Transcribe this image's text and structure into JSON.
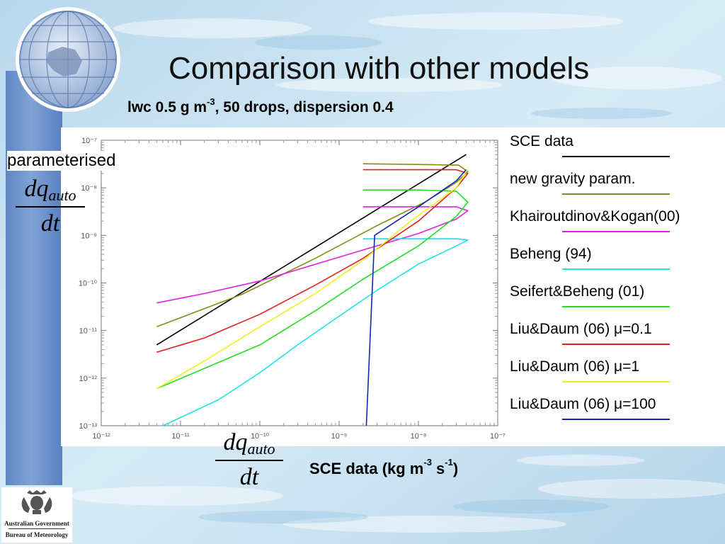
{
  "title": "Comparison with other models",
  "subtitle": {
    "main": "lwc 0.5 g m",
    "sup1": "-3",
    "rest": ", 50 drops, dispersion 0.4"
  },
  "y_annotation": "parameterised",
  "y_fraction": {
    "num": "dq",
    "sub": "auto",
    "den": "dt"
  },
  "x_fraction": {
    "num": "dq",
    "sub": "auto",
    "den": "dt"
  },
  "x_label": {
    "main": "SCE data (kg m",
    "sup1": "-3",
    "mid": " s",
    "sup2": "-1",
    "end": ")"
  },
  "logo": {
    "line1": "Australian Government",
    "line2": "Bureau of Meteorology"
  },
  "colors": {
    "sce": "#000000",
    "gravity": "#8a8a1a",
    "kk": "#e020e0",
    "beheng": "#20e0e8",
    "sb": "#20e020",
    "liu01": "#e02020",
    "liu1": "#f0f020",
    "liu100": "#1028b0"
  },
  "legend": [
    {
      "label": "SCE data",
      "color": "#000000"
    },
    {
      "label": "new gravity param.",
      "color": "#8a8a1a"
    },
    {
      "label": "Khairoutdinov&Kogan(00)",
      "color": "#e020e0"
    },
    {
      "label": "Beheng (94)",
      "color": "#20e0e8"
    },
    {
      "label": "Seifert&Beheng (01)",
      "color": "#20e020"
    },
    {
      "label": "Liu&Daum (06) μ=0.1",
      "color": "#e02020"
    },
    {
      "label": "Liu&Daum (06) μ=1",
      "color": "#f0f020"
    },
    {
      "label": "Liu&Daum (06) μ=100",
      "color": "#1028b0"
    }
  ],
  "chart_data": {
    "type": "line",
    "x_scale": "log",
    "y_scale": "log",
    "xlim": [
      1e-12,
      1e-07
    ],
    "ylim": [
      1e-13,
      1e-07
    ],
    "x_ticks": [
      "10⁻¹²",
      "10⁻¹¹",
      "10⁻¹⁰",
      "10⁻⁹",
      "10⁻⁸",
      "10⁻⁷"
    ],
    "y_ticks": [
      "10⁻¹³",
      "10⁻¹²",
      "10⁻¹¹",
      "10⁻¹⁰",
      "10⁻⁹",
      "10⁻⁸",
      "10⁻⁷"
    ],
    "series": [
      {
        "name": "SCE data",
        "color": "#000000",
        "points": [
          [
            5e-12,
            5e-12
          ],
          [
            4e-08,
            5e-08
          ]
        ]
      },
      {
        "name": "new gravity param.",
        "color": "#8a8a1a",
        "points": [
          [
            5e-12,
            1.2e-11
          ],
          [
            6e-11,
            5.8e-11
          ],
          [
            5e-10,
            3.3e-10
          ],
          [
            3e-09,
            1.6e-09
          ],
          [
            1.2e-08,
            5e-09
          ],
          [
            3e-08,
            1.3e-08
          ],
          [
            4.2e-08,
            2.2e-08
          ],
          [
            3.2e-08,
            3e-08
          ],
          [
            1e-08,
            3.1e-08
          ],
          [
            2e-09,
            3.2e-08
          ]
        ]
      },
      {
        "name": "Khairoutdinov&Kogan(00)",
        "color": "#e020e0",
        "points": [
          [
            5e-12,
            3.8e-11
          ],
          [
            2e-11,
            6e-11
          ],
          [
            1e-10,
            1.1e-10
          ],
          [
            1e-09,
            3.5e-10
          ],
          [
            1e-08,
            1.1e-09
          ],
          [
            3e-08,
            2.2e-09
          ],
          [
            4.2e-08,
            3.3e-09
          ],
          [
            3e-08,
            4e-09
          ],
          [
            1e-08,
            4e-09
          ],
          [
            2e-09,
            4e-09
          ]
        ]
      },
      {
        "name": "Beheng (94)",
        "color": "#20e0e8",
        "points": [
          [
            6e-12,
            1e-13
          ],
          [
            3e-11,
            3.5e-13
          ],
          [
            1e-10,
            1.3e-12
          ],
          [
            3e-10,
            5e-12
          ],
          [
            1e-09,
            2e-11
          ],
          [
            3e-09,
            7e-11
          ],
          [
            1e-08,
            2.5e-10
          ],
          [
            3e-08,
            6e-10
          ],
          [
            4.2e-08,
            8e-10
          ],
          [
            3e-08,
            8.5e-10
          ],
          [
            1e-08,
            8.5e-10
          ],
          [
            2e-09,
            8.5e-10
          ]
        ]
      },
      {
        "name": "Seifert&Beheng (01)",
        "color": "#20e020",
        "points": [
          [
            5e-12,
            6e-13
          ],
          [
            2e-11,
            1.6e-12
          ],
          [
            1e-10,
            5e-12
          ],
          [
            5e-10,
            2.6e-11
          ],
          [
            2e-09,
            1.2e-10
          ],
          [
            1e-08,
            6e-10
          ],
          [
            3e-08,
            2.5e-09
          ],
          [
            4.2e-08,
            5e-09
          ],
          [
            3e-08,
            8.5e-09
          ],
          [
            1e-08,
            9e-09
          ],
          [
            2e-09,
            9e-09
          ]
        ]
      },
      {
        "name": "Liu&Daum (06) μ=0.1",
        "color": "#e02020",
        "points": [
          [
            5e-12,
            3.5e-12
          ],
          [
            2e-11,
            7e-12
          ],
          [
            1e-10,
            2.2e-11
          ],
          [
            5e-10,
            9e-11
          ],
          [
            2e-09,
            3.3e-10
          ],
          [
            1e-08,
            2e-09
          ],
          [
            3e-08,
            1e-08
          ],
          [
            4.2e-08,
            2e-08
          ],
          [
            3e-08,
            2.4e-08
          ],
          [
            1e-08,
            2.4e-08
          ],
          [
            2e-09,
            2.4e-08
          ]
        ]
      },
      {
        "name": "Liu&Daum (06) μ=1",
        "color": "#f0f020",
        "points": [
          [
            5e-12,
            6e-13
          ],
          [
            2e-11,
            2.3e-12
          ],
          [
            1e-10,
            1.2e-11
          ],
          [
            5e-10,
            6e-11
          ],
          [
            2e-09,
            3e-10
          ],
          [
            8e-09,
            2e-09
          ],
          [
            3e-08,
            1e-08
          ],
          [
            4.2e-08,
            2.5e-08
          ]
        ]
      },
      {
        "name": "Liu&Daum (06) μ=100",
        "color": "#1028b0",
        "points": [
          [
            2.2e-09,
            1e-13
          ],
          [
            2.8e-09,
            1e-09
          ],
          [
            1e-08,
            4e-09
          ],
          [
            3e-08,
            1.4e-08
          ],
          [
            4e-08,
            2.4e-08
          ]
        ]
      }
    ]
  }
}
